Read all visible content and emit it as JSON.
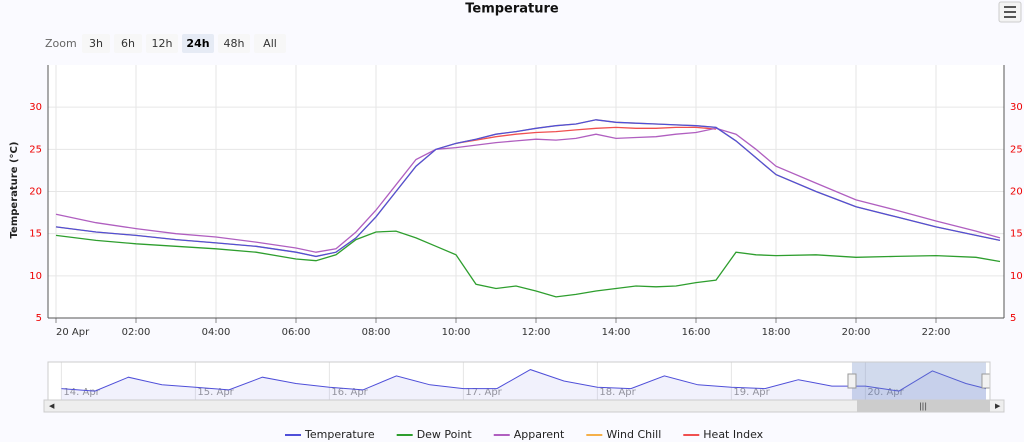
{
  "chart_data": [
    {
      "type": "line",
      "title": "Temperature",
      "y_label": "Temperature (°C)",
      "zoom": {
        "label": "Zoom",
        "buttons": [
          "3h",
          "6h",
          "12h",
          "24h",
          "48h",
          "All"
        ],
        "selected": "24h"
      },
      "x": [
        0,
        1,
        2,
        3,
        4,
        5,
        6,
        6.5,
        7,
        7.5,
        8,
        8.5,
        9,
        9.5,
        10,
        10.5,
        11,
        11.5,
        12,
        12.5,
        13,
        13.5,
        14,
        14.5,
        15,
        15.5,
        16,
        16.5,
        17,
        17.5,
        18,
        19,
        20,
        21,
        22,
        23,
        23.6
      ],
      "xlim": [
        -0.2,
        23.7
      ],
      "xticks": [
        {
          "value": 0,
          "label": "20 Apr"
        },
        {
          "value": 2,
          "label": "02:00"
        },
        {
          "value": 4,
          "label": "04:00"
        },
        {
          "value": 6,
          "label": "06:00"
        },
        {
          "value": 8,
          "label": "08:00"
        },
        {
          "value": 10,
          "label": "10:00"
        },
        {
          "value": 12,
          "label": "12:00"
        },
        {
          "value": 14,
          "label": "14:00"
        },
        {
          "value": 16,
          "label": "16:00"
        },
        {
          "value": 18,
          "label": "18:00"
        },
        {
          "value": 20,
          "label": "20:00"
        },
        {
          "value": 22,
          "label": "22:00"
        }
      ],
      "ylim": [
        5,
        35
      ],
      "yticks": [
        5,
        10,
        15,
        20,
        25,
        30
      ],
      "grid": true,
      "series": [
        {
          "name": "Temperature",
          "color": "#4f4fd9",
          "values": [
            15.8,
            15.2,
            14.8,
            14.3,
            13.9,
            13.5,
            12.8,
            12.3,
            12.8,
            14.5,
            17,
            20,
            23,
            25,
            25.7,
            26.2,
            26.8,
            27.1,
            27.5,
            27.8,
            28,
            28.5,
            28.2,
            28.1,
            28,
            27.9,
            27.8,
            27.6,
            26,
            24,
            22,
            20,
            18.2,
            17,
            15.8,
            14.8,
            14.2
          ]
        },
        {
          "name": "Dew Point",
          "color": "#2e9e2e",
          "values": [
            14.8,
            14.2,
            13.8,
            13.5,
            13.2,
            12.8,
            12,
            11.8,
            12.5,
            14.3,
            15.2,
            15.3,
            14.5,
            13.5,
            12.5,
            9,
            8.5,
            8.8,
            8.2,
            7.5,
            7.8,
            8.2,
            8.5,
            8.8,
            8.7,
            8.8,
            9.2,
            9.5,
            12.8,
            12.5,
            12.4,
            12.5,
            12.2,
            12.3,
            12.4,
            12.2,
            11.7
          ]
        },
        {
          "name": "Apparent",
          "color": "#b05fc0",
          "values": [
            17.3,
            16.3,
            15.6,
            15,
            14.6,
            14,
            13.3,
            12.8,
            13.2,
            15.2,
            17.8,
            20.8,
            23.8,
            25,
            25.2,
            25.5,
            25.8,
            26,
            26.2,
            26.1,
            26.3,
            26.8,
            26.3,
            26.4,
            26.5,
            26.8,
            27,
            27.5,
            26.8,
            25,
            23,
            21,
            19,
            17.8,
            16.5,
            15.3,
            14.5
          ]
        },
        {
          "name": "Wind Chill",
          "color": "#f5b04a",
          "values": [
            15.8,
            15.2,
            14.8,
            14.3,
            13.9,
            13.5,
            12.8,
            12.3,
            12.8,
            14.5,
            17,
            20,
            23,
            25,
            25.7,
            26.2,
            26.8,
            27.1,
            27.5,
            27.8,
            28,
            28.5,
            28.2,
            28.1,
            28,
            27.9,
            27.8,
            27.6,
            26,
            24,
            22,
            20,
            18.2,
            17,
            15.8,
            14.8,
            14.2
          ]
        },
        {
          "name": "Heat Index",
          "color": "#f05050",
          "values": [
            null,
            null,
            null,
            null,
            null,
            null,
            null,
            null,
            null,
            null,
            null,
            null,
            null,
            null,
            25.7,
            26.1,
            26.5,
            26.8,
            27,
            27.1,
            27.3,
            27.5,
            27.6,
            27.5,
            27.5,
            27.6,
            27.6,
            27.4,
            null,
            null,
            null,
            null,
            null,
            null,
            null,
            null,
            null
          ]
        }
      ]
    },
    {
      "type": "line",
      "color": "#4f4fd9",
      "x": [
        0,
        0.25,
        0.5,
        0.75,
        1,
        1.25,
        1.5,
        1.75,
        2,
        2.25,
        2.5,
        2.75,
        3,
        3.25,
        3.5,
        3.75,
        4,
        4.25,
        4.5,
        4.75,
        5,
        5.25,
        5.5,
        5.75,
        6,
        6.25,
        6.5,
        6.75,
        6.9
      ],
      "values": [
        14,
        12,
        23,
        17,
        15,
        13,
        23,
        18,
        15,
        13,
        24,
        17,
        14,
        14,
        29,
        20,
        15,
        14,
        24,
        17,
        15,
        14,
        21,
        16,
        16,
        12,
        28,
        18,
        14
      ],
      "xlim": [
        -0.1,
        6.93
      ],
      "ylim": [
        5,
        35
      ],
      "xticks": [
        {
          "value": 0,
          "label": "14. Apr"
        },
        {
          "value": 1,
          "label": "15. Apr"
        },
        {
          "value": 2,
          "label": "16. Apr"
        },
        {
          "value": 3,
          "label": "17. Apr"
        },
        {
          "value": 4,
          "label": "18. Apr"
        },
        {
          "value": 5,
          "label": "19. Apr"
        },
        {
          "value": 6,
          "label": "20. Apr"
        }
      ],
      "selection": [
        5.9,
        6.9
      ]
    }
  ]
}
